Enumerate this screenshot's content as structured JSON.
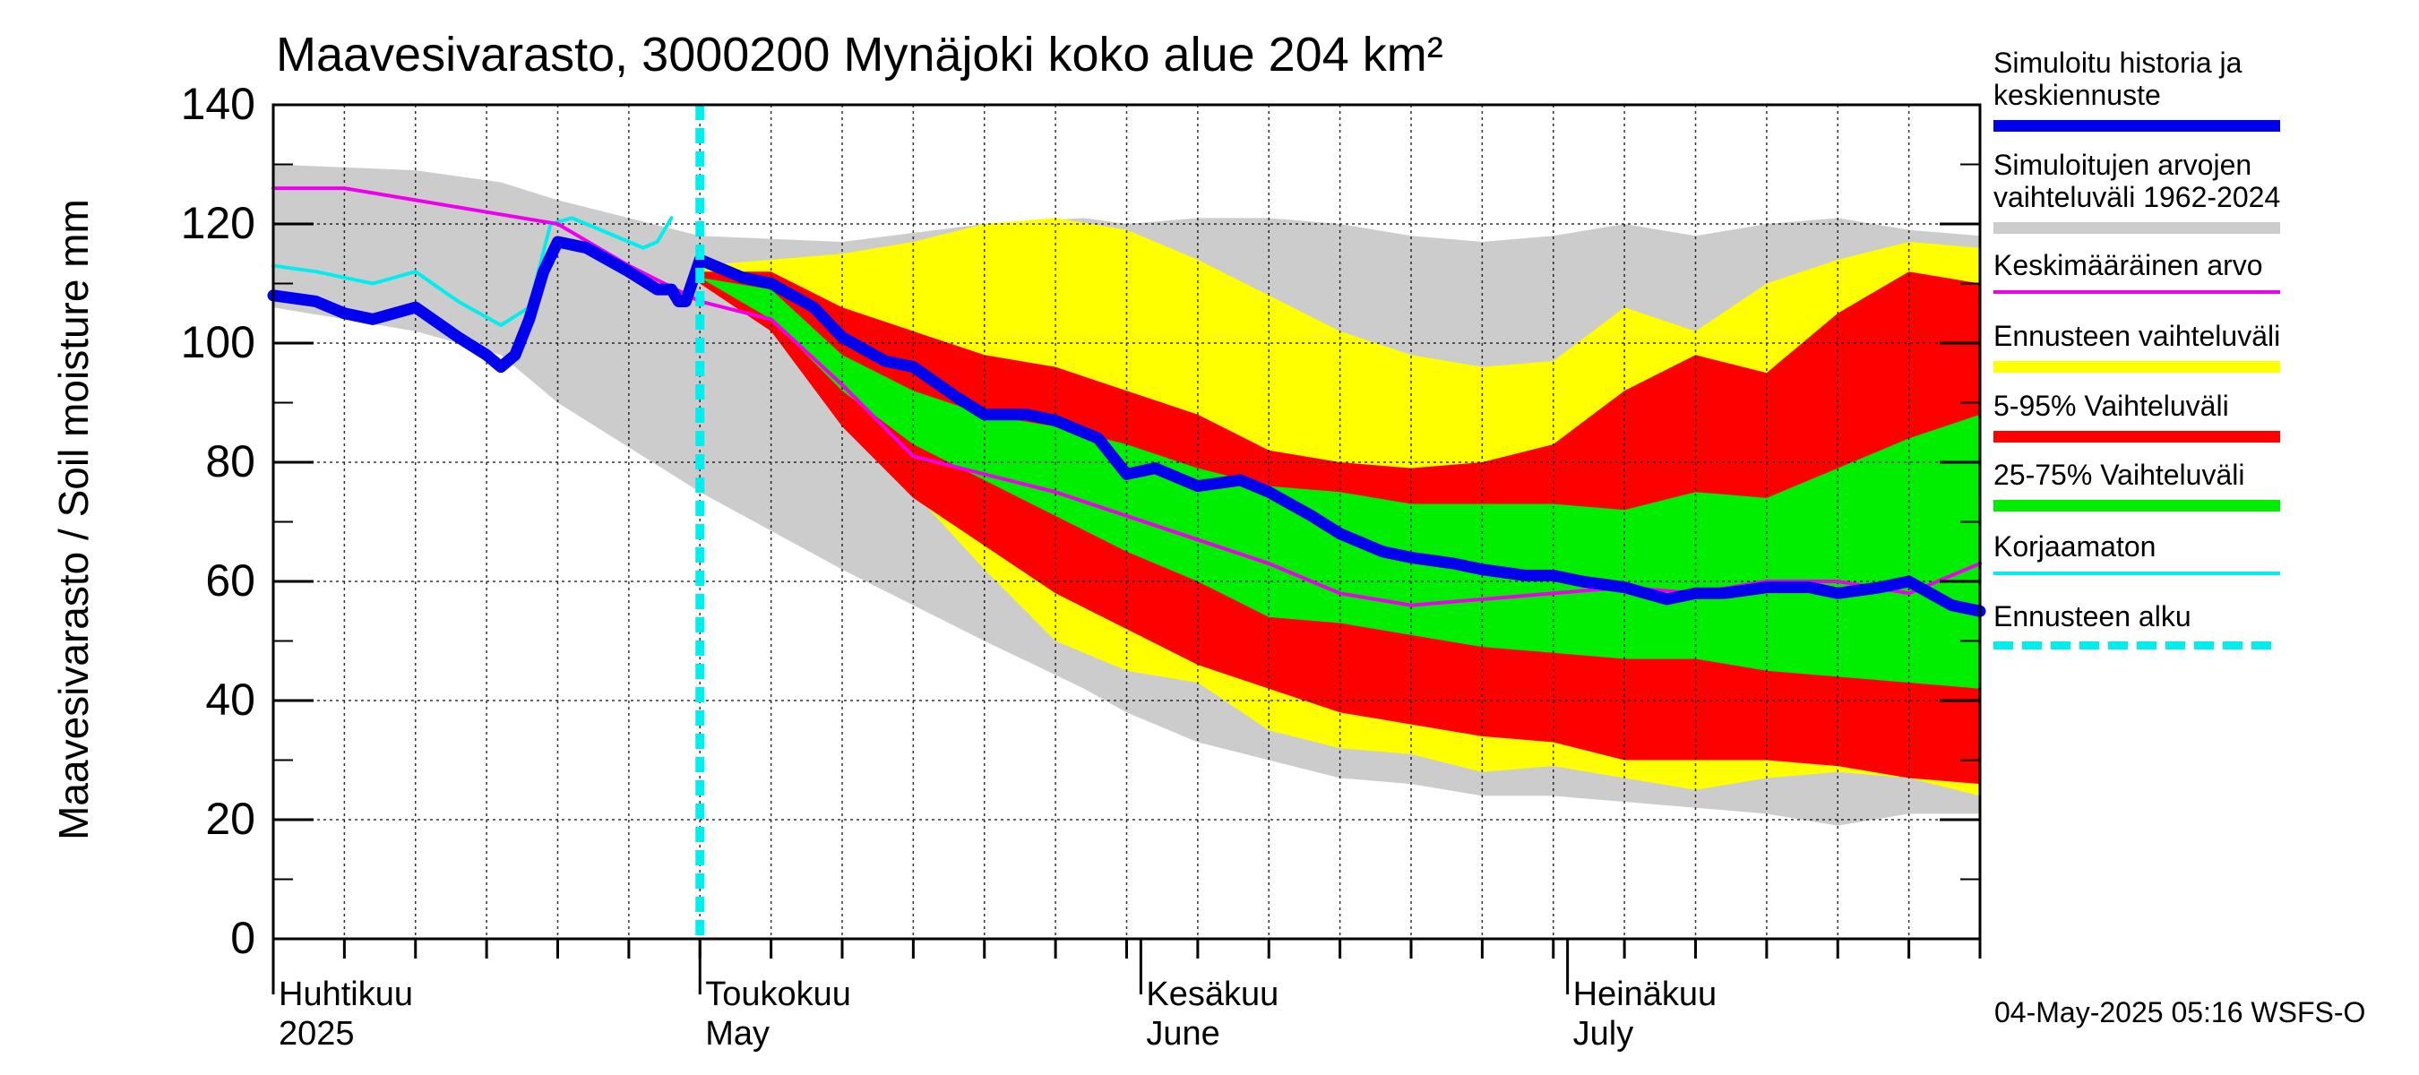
{
  "chart_data": {
    "type": "area",
    "title": "Maavesivarasto, 3000200 Mynäjoki koko alue 204 km²",
    "ylabel": "Maavesivarasto / Soil moisture   mm",
    "ylim": [
      0,
      140
    ],
    "yticks": [
      "0",
      "20",
      "40",
      "60",
      "80",
      "100",
      "120",
      "140"
    ],
    "xlim_days": [
      0,
      120
    ],
    "x_unit": "days since 2025-04-01",
    "month_labels": [
      {
        "fi": "Huhtikuu",
        "en": "2025",
        "day": 0
      },
      {
        "fi": "Toukokuu",
        "en": "May",
        "day": 30
      },
      {
        "fi": "Kesäkuu",
        "en": "June",
        "day": 61
      },
      {
        "fi": "Heinäkuu",
        "en": "July",
        "day": 91
      }
    ],
    "forecast_start_day": 30,
    "timestamp": "04-May-2025 05:16 WSFS-O",
    "legend": [
      {
        "label": "Simuloitu historia ja keskiennuste",
        "color": "#0000ee",
        "style": "thick"
      },
      {
        "label": "Simuloitujen arvojen vaihteluväli 1962-2024",
        "color": "#cccccc",
        "style": "band"
      },
      {
        "label": "Keskimääräinen arvo",
        "color": "#ee00ee",
        "style": "line"
      },
      {
        "label": "Ennusteen vaihteluväli",
        "color": "#ffff00",
        "style": "band"
      },
      {
        "label": "5-95% Vaihteluväli",
        "color": "#ff0000",
        "style": "band"
      },
      {
        "label": "25-75% Vaihteluväli",
        "color": "#00ee00",
        "style": "band"
      },
      {
        "label": "Korjaamaton",
        "color": "#00eeee",
        "style": "line"
      },
      {
        "label": "Ennusteen alku",
        "color": "#00eeee",
        "style": "dashed"
      }
    ],
    "series": [
      {
        "name": "hist_range",
        "days": [
          0,
          10,
          16,
          20,
          30,
          40,
          50,
          57,
          60,
          65,
          70,
          75,
          80,
          85,
          90,
          95,
          100,
          105,
          110,
          115,
          120
        ],
        "upper": [
          130,
          129,
          127,
          124,
          118,
          117,
          120,
          121,
          120,
          121,
          121,
          120,
          118,
          117,
          118,
          120,
          118,
          120,
          121,
          119,
          118
        ],
        "lower": [
          106,
          102,
          98,
          90,
          75,
          62,
          50,
          42,
          38,
          33,
          30,
          27,
          26,
          24,
          24,
          23,
          22,
          21,
          19,
          21,
          21
        ]
      },
      {
        "name": "forecast_range",
        "days": [
          30,
          35,
          40,
          45,
          50,
          55,
          60,
          65,
          70,
          75,
          80,
          85,
          90,
          95,
          100,
          105,
          110,
          115,
          120
        ],
        "upper": [
          113,
          114,
          115,
          117,
          120,
          121,
          119,
          114,
          108,
          102,
          98,
          96,
          97,
          106,
          102,
          110,
          114,
          117,
          116
        ],
        "lower": [
          110,
          103,
          88,
          75,
          62,
          50,
          45,
          43,
          35,
          32,
          31,
          28,
          29,
          27,
          25,
          27,
          28,
          27,
          24
        ]
      },
      {
        "name": "p5_95",
        "days": [
          30,
          35,
          40,
          45,
          50,
          55,
          60,
          65,
          70,
          75,
          80,
          85,
          90,
          95,
          100,
          105,
          110,
          115,
          120
        ],
        "upper": [
          112,
          112,
          106,
          102,
          98,
          96,
          92,
          88,
          82,
          80,
          79,
          80,
          83,
          92,
          98,
          95,
          105,
          112,
          110
        ],
        "lower": [
          110,
          102,
          86,
          74,
          66,
          58,
          52,
          46,
          42,
          38,
          36,
          34,
          33,
          30,
          30,
          30,
          29,
          27,
          26
        ]
      },
      {
        "name": "p25_75",
        "days": [
          30,
          35,
          40,
          45,
          50,
          55,
          60,
          65,
          70,
          75,
          80,
          85,
          90,
          95,
          100,
          105,
          110,
          115,
          120
        ],
        "upper": [
          111,
          109,
          98,
          92,
          88,
          86,
          83,
          79,
          76,
          75,
          73,
          73,
          73,
          72,
          75,
          74,
          79,
          84,
          88
        ],
        "lower": [
          111,
          104,
          92,
          83,
          77,
          71,
          65,
          60,
          54,
          53,
          51,
          49,
          48,
          47,
          47,
          45,
          44,
          43,
          42
        ]
      },
      {
        "name": "corrected_uncorrected",
        "days": [
          0,
          3,
          7,
          10,
          13,
          16,
          18,
          19.5,
          21,
          23,
          26,
          27,
          28
        ],
        "values": [
          113,
          112,
          110,
          112,
          107,
          103,
          106,
          120,
          121,
          119,
          116,
          117,
          121
        ]
      },
      {
        "name": "mean",
        "days": [
          0,
          5,
          10,
          15,
          20,
          25,
          30,
          35,
          40,
          45,
          50,
          55,
          60,
          65,
          70,
          75,
          80,
          85,
          90,
          95,
          100,
          105,
          110,
          115,
          120
        ],
        "values": [
          126,
          126,
          124,
          122,
          120,
          113,
          107,
          104,
          93,
          81,
          78,
          75,
          71,
          67,
          63,
          58,
          56,
          57,
          58,
          59,
          58,
          60,
          60,
          58,
          63
        ]
      },
      {
        "name": "main",
        "days": [
          0,
          3,
          5,
          7,
          10,
          13,
          15,
          16,
          17,
          18,
          19,
          20,
          22,
          25,
          27,
          28,
          28.5,
          29,
          30,
          33,
          35,
          38,
          40,
          43,
          45,
          48,
          50,
          53,
          55,
          58,
          60,
          62,
          65,
          68,
          70,
          73,
          75,
          78,
          80,
          83,
          85,
          88,
          90,
          92,
          95,
          98,
          100,
          102,
          105,
          108,
          110,
          113,
          115,
          118,
          120
        ],
        "values": [
          108,
          107,
          105,
          104,
          106,
          101,
          98,
          96,
          98,
          104,
          112,
          117,
          116,
          112,
          109,
          109,
          107,
          107,
          114,
          111,
          110,
          106,
          101,
          97,
          96,
          91,
          88,
          88,
          87,
          84,
          78,
          79,
          76,
          77,
          75,
          71,
          68,
          65,
          64,
          63,
          62,
          61,
          61,
          60,
          59,
          57,
          58,
          58,
          59,
          59,
          58,
          59,
          60,
          56,
          55
        ]
      }
    ]
  }
}
